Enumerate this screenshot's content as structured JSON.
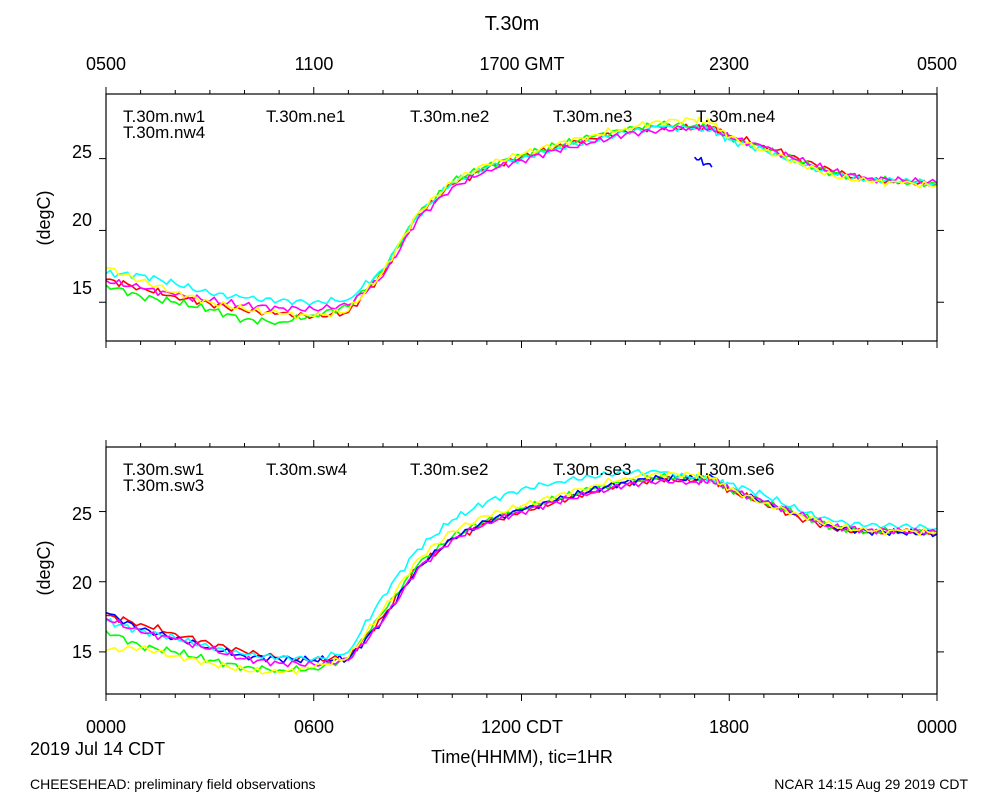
{
  "title": "T.30m",
  "top_axis_labels": [
    "0500",
    "1100",
    "1700 GMT",
    "2300",
    "0500"
  ],
  "bottom_axis_labels": [
    "0000",
    "0600",
    "1200 CDT",
    "1800",
    "0000"
  ],
  "date_label": "2019 Jul 14 CDT",
  "xlabel": "Time(HHMM), tic=1HR",
  "footer_left": "CHEESEHEAD: preliminary field observations",
  "footer_right": "NCAR 14:15 Aug 29 2019 CDT",
  "chart_data": [
    {
      "type": "line",
      "panel": "top",
      "ylabel": "(degC)",
      "yticks": [
        "25",
        "20",
        "15"
      ],
      "x_unit": "hours since 0000 CDT",
      "xlim": [
        0,
        24
      ],
      "ylim": [
        12.3,
        29.5
      ],
      "x": [
        0,
        1,
        2,
        3,
        4,
        5,
        6,
        7,
        8,
        9,
        10,
        11,
        12,
        13,
        14,
        15,
        16,
        17,
        17.5,
        18,
        19,
        20,
        21,
        22,
        23,
        24
      ],
      "series": [
        {
          "name": "T.30m.nw1",
          "color": "#ff0000",
          "values": [
            16.6,
            16.0,
            15.4,
            14.9,
            14.4,
            14.2,
            14.0,
            14.3,
            17.0,
            21.0,
            23.2,
            24.3,
            25.1,
            25.8,
            26.4,
            26.9,
            27.2,
            27.1,
            27.2,
            26.6,
            25.9,
            25.0,
            24.1,
            23.5,
            23.4,
            23.2
          ]
        },
        {
          "name": "T.30m.nw4",
          "color": "#00ff00",
          "values": [
            16.2,
            15.4,
            15.0,
            14.5,
            13.8,
            13.6,
            14.1,
            14.7,
            17.2,
            21.1,
            23.4,
            24.5,
            25.2,
            25.9,
            26.5,
            27.0,
            27.4,
            27.3,
            27.2,
            26.5,
            25.7,
            24.8,
            24.0,
            23.6,
            23.4,
            23.2
          ]
        },
        {
          "name": "T.30m.ne1",
          "color": "#0000ff",
          "values": [
            null,
            null,
            null,
            null,
            null,
            null,
            null,
            null,
            null,
            null,
            null,
            null,
            null,
            null,
            null,
            null,
            null,
            25.1,
            24.4,
            null,
            null,
            null,
            null,
            null,
            null,
            null
          ]
        },
        {
          "name": "T.30m.ne2",
          "color": "#00ffff",
          "values": [
            17.0,
            16.9,
            16.3,
            15.6,
            15.3,
            15.1,
            15.0,
            15.2,
            17.3,
            21.0,
            23.3,
            24.4,
            25.0,
            25.7,
            26.2,
            26.8,
            27.2,
            27.1,
            27.0,
            26.3,
            25.6,
            24.7,
            23.9,
            23.5,
            23.5,
            23.3
          ]
        },
        {
          "name": "T.30m.ne3",
          "color": "#ff00ff",
          "values": [
            16.5,
            16.0,
            15.5,
            15.1,
            14.8,
            14.6,
            14.5,
            14.8,
            16.8,
            20.8,
            23.0,
            24.2,
            24.9,
            25.6,
            26.1,
            26.7,
            27.0,
            27.2,
            27.1,
            26.5,
            25.8,
            24.9,
            24.1,
            23.6,
            23.5,
            23.3
          ]
        },
        {
          "name": "T.30m.ne4",
          "color": "#ffff00",
          "values": [
            17.4,
            16.5,
            15.7,
            15.0,
            14.5,
            14.2,
            14.0,
            14.4,
            17.1,
            21.2,
            23.4,
            24.6,
            25.3,
            26.0,
            26.6,
            27.1,
            27.6,
            27.7,
            27.5,
            26.5,
            25.6,
            24.7,
            23.8,
            23.4,
            23.3,
            23.1
          ]
        }
      ]
    },
    {
      "type": "line",
      "panel": "bottom",
      "ylabel": "(degC)",
      "yticks": [
        "25",
        "20",
        "15"
      ],
      "x_unit": "hours since 0000 CDT",
      "xlim": [
        0,
        24
      ],
      "ylim": [
        12.0,
        29.6
      ],
      "x": [
        0,
        1,
        2,
        3,
        4,
        5,
        6,
        7,
        8,
        9,
        10,
        11,
        12,
        13,
        14,
        15,
        16,
        17,
        17.5,
        18,
        19,
        20,
        21,
        22,
        23,
        24
      ],
      "series": [
        {
          "name": "T.30m.sw1",
          "color": "#ff0000",
          "values": [
            17.6,
            17.0,
            16.3,
            15.6,
            15.0,
            14.6,
            14.4,
            14.6,
            17.5,
            21.0,
            23.0,
            24.2,
            25.0,
            25.7,
            26.4,
            27.0,
            27.3,
            27.2,
            27.4,
            26.5,
            25.6,
            24.6,
            23.8,
            23.5,
            23.6,
            23.5
          ]
        },
        {
          "name": "T.30m.sw3",
          "color": "#00ff00",
          "values": [
            16.5,
            15.4,
            15.0,
            14.4,
            13.9,
            13.7,
            13.8,
            14.5,
            17.8,
            21.2,
            23.2,
            24.4,
            25.2,
            25.9,
            26.6,
            27.1,
            27.5,
            27.4,
            27.3,
            26.6,
            25.7,
            24.8,
            23.9,
            23.6,
            23.6,
            23.5
          ]
        },
        {
          "name": "T.30m.sw4",
          "color": "#0000ff",
          "values": [
            17.8,
            16.6,
            16.0,
            15.3,
            14.7,
            14.5,
            14.4,
            14.5,
            17.3,
            21.0,
            23.1,
            24.3,
            25.1,
            25.8,
            26.5,
            27.1,
            27.4,
            27.3,
            27.5,
            26.6,
            25.7,
            24.8,
            23.9,
            23.6,
            23.5,
            23.4
          ]
        },
        {
          "name": "T.30m.se2",
          "color": "#00ffff",
          "values": [
            17.2,
            16.5,
            16.0,
            15.3,
            14.8,
            14.6,
            14.5,
            15.0,
            19.0,
            22.3,
            24.4,
            25.7,
            26.6,
            27.1,
            27.5,
            27.8,
            27.8,
            27.4,
            27.2,
            27.0,
            26.2,
            25.1,
            24.3,
            24.0,
            24.0,
            23.8
          ]
        },
        {
          "name": "T.30m.se3",
          "color": "#ff00ff",
          "values": [
            17.4,
            16.4,
            15.9,
            15.2,
            14.5,
            14.2,
            14.1,
            14.4,
            17.2,
            20.9,
            23.0,
            24.2,
            25.0,
            25.7,
            26.3,
            26.9,
            27.2,
            27.1,
            27.2,
            26.6,
            25.7,
            24.8,
            23.9,
            23.7,
            23.6,
            23.5
          ]
        },
        {
          "name": "T.30m.se6",
          "color": "#ffff00",
          "values": [
            15.1,
            15.3,
            14.7,
            14.2,
            13.7,
            13.5,
            13.9,
            14.6,
            18.0,
            21.6,
            23.6,
            24.7,
            25.4,
            26.1,
            26.8,
            27.4,
            27.7,
            27.6,
            27.4,
            26.6,
            25.6,
            24.8,
            24.0,
            23.6,
            23.6,
            23.5
          ]
        }
      ]
    }
  ]
}
